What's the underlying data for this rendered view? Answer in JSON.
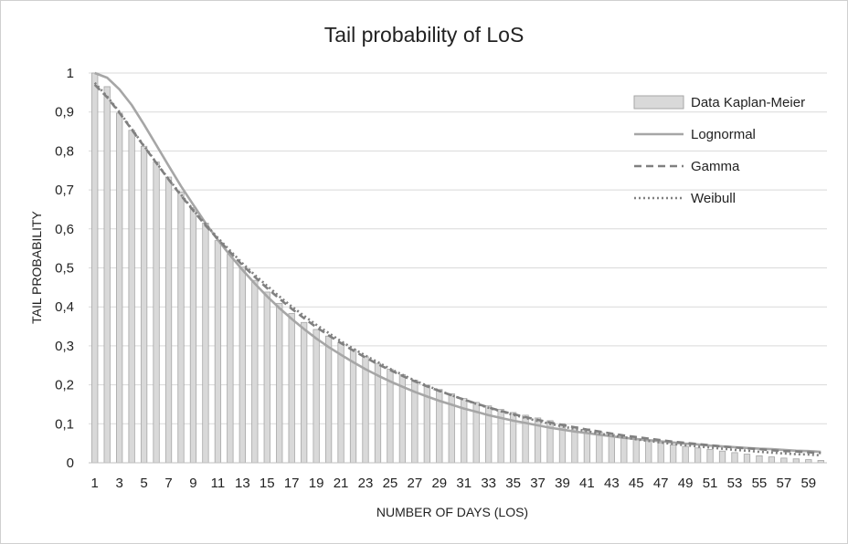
{
  "chart_data": {
    "type": "bar",
    "title": "Tail probability  of LoS",
    "xlabel": "NUMBER OF DAYS (LOS)",
    "ylabel": "TAIL PROBABILITY",
    "ylim": [
      0,
      1
    ],
    "yticks": [
      "0",
      "0,1",
      "0,2",
      "0,3",
      "0,4",
      "0,5",
      "0,6",
      "0,7",
      "0,8",
      "0,9",
      "1"
    ],
    "grid": true,
    "legend_position": "top-right",
    "categories": [
      "1",
      "2",
      "3",
      "4",
      "5",
      "6",
      "7",
      "8",
      "9",
      "10",
      "11",
      "12",
      "13",
      "14",
      "15",
      "16",
      "17",
      "18",
      "19",
      "20",
      "21",
      "22",
      "23",
      "24",
      "25",
      "26",
      "27",
      "28",
      "29",
      "30",
      "31",
      "32",
      "33",
      "34",
      "35",
      "36",
      "37",
      "38",
      "39",
      "40",
      "41",
      "42",
      "43",
      "44",
      "45",
      "46",
      "47",
      "48",
      "49",
      "50",
      "51",
      "52",
      "53",
      "54",
      "55",
      "56",
      "57",
      "58",
      "59",
      "60"
    ],
    "xtick_labels": [
      "1",
      "3",
      "5",
      "7",
      "9",
      "11",
      "13",
      "15",
      "17",
      "19",
      "21",
      "23",
      "25",
      "27",
      "29",
      "31",
      "33",
      "35",
      "37",
      "39",
      "41",
      "43",
      "45",
      "47",
      "49",
      "51",
      "53",
      "55",
      "57",
      "59"
    ],
    "series": [
      {
        "name": "Data Kaplan-Meier",
        "kind": "bar",
        "color": "#d9d9d9",
        "edge": "#a6a6a6",
        "values": [
          1.0,
          0.965,
          0.897,
          0.853,
          0.812,
          0.772,
          0.733,
          0.695,
          0.655,
          0.615,
          0.57,
          0.535,
          0.502,
          0.468,
          0.438,
          0.409,
          0.383,
          0.36,
          0.342,
          0.325,
          0.308,
          0.291,
          0.272,
          0.255,
          0.24,
          0.226,
          0.212,
          0.199,
          0.188,
          0.177,
          0.165,
          0.155,
          0.146,
          0.137,
          0.129,
          0.122,
          0.115,
          0.108,
          0.1,
          0.093,
          0.087,
          0.079,
          0.073,
          0.067,
          0.061,
          0.056,
          0.051,
          0.046,
          0.042,
          0.038,
          0.034,
          0.03,
          0.026,
          0.022,
          0.018,
          0.015,
          0.012,
          0.01,
          0.008,
          0.006
        ]
      },
      {
        "name": "Lognormal",
        "kind": "line",
        "style": "solid",
        "color": "#a6a6a6",
        "values": [
          1.0,
          0.988,
          0.958,
          0.918,
          0.868,
          0.815,
          0.762,
          0.71,
          0.662,
          0.615,
          0.572,
          0.532,
          0.495,
          0.46,
          0.427,
          0.397,
          0.369,
          0.343,
          0.319,
          0.297,
          0.277,
          0.258,
          0.24,
          0.224,
          0.209,
          0.195,
          0.182,
          0.17,
          0.159,
          0.149,
          0.139,
          0.131,
          0.122,
          0.115,
          0.108,
          0.102,
          0.096,
          0.09,
          0.085,
          0.08,
          0.076,
          0.072,
          0.068,
          0.064,
          0.061,
          0.058,
          0.055,
          0.052,
          0.049,
          0.047,
          0.044,
          0.042,
          0.04,
          0.038,
          0.036,
          0.035,
          0.033,
          0.031,
          0.03,
          0.028
        ]
      },
      {
        "name": "Gamma",
        "kind": "line",
        "style": "dashed",
        "color": "#808080",
        "values": [
          0.97,
          0.938,
          0.898,
          0.855,
          0.812,
          0.769,
          0.727,
          0.686,
          0.647,
          0.609,
          0.574,
          0.54,
          0.507,
          0.477,
          0.448,
          0.421,
          0.395,
          0.371,
          0.348,
          0.327,
          0.307,
          0.288,
          0.27,
          0.253,
          0.238,
          0.223,
          0.209,
          0.196,
          0.184,
          0.173,
          0.162,
          0.152,
          0.142,
          0.133,
          0.125,
          0.117,
          0.11,
          0.103,
          0.097,
          0.091,
          0.085,
          0.08,
          0.075,
          0.07,
          0.066,
          0.062,
          0.058,
          0.054,
          0.051,
          0.048,
          0.045,
          0.042,
          0.039,
          0.037,
          0.035,
          0.032,
          0.03,
          0.029,
          0.027,
          0.025
        ]
      },
      {
        "name": "Weibull",
        "kind": "line",
        "style": "dotted",
        "color": "#808080",
        "values": [
          0.975,
          0.94,
          0.9,
          0.857,
          0.813,
          0.77,
          0.728,
          0.688,
          0.649,
          0.612,
          0.577,
          0.544,
          0.512,
          0.482,
          0.454,
          0.427,
          0.401,
          0.377,
          0.354,
          0.333,
          0.312,
          0.293,
          0.275,
          0.258,
          0.241,
          0.226,
          0.211,
          0.198,
          0.185,
          0.173,
          0.162,
          0.151,
          0.141,
          0.132,
          0.123,
          0.115,
          0.107,
          0.1,
          0.093,
          0.087,
          0.081,
          0.075,
          0.07,
          0.065,
          0.06,
          0.056,
          0.052,
          0.048,
          0.045,
          0.042,
          0.039,
          0.036,
          0.033,
          0.031,
          0.028,
          0.026,
          0.024,
          0.022,
          0.021,
          0.019
        ]
      }
    ]
  }
}
